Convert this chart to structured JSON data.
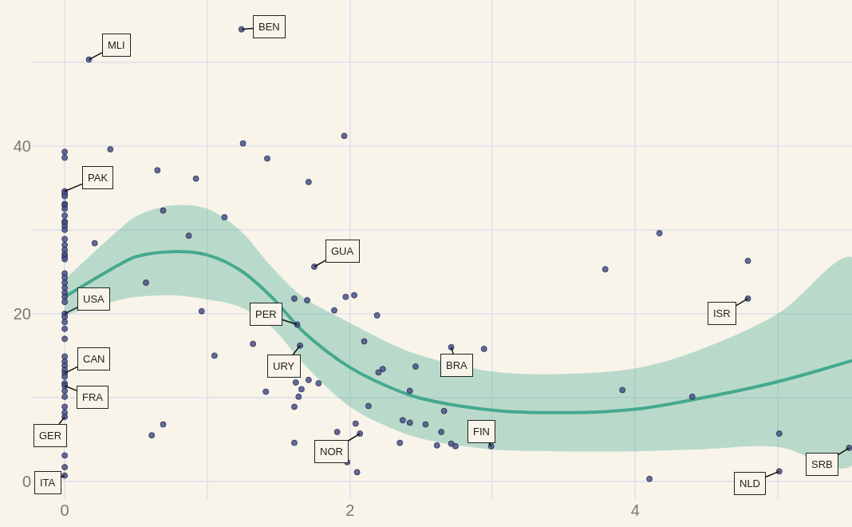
{
  "chart_data": {
    "type": "scatter",
    "xlim": [
      -0.23,
      5.52
    ],
    "ylim": [
      -2.1,
      57.4
    ],
    "xticks": [
      0,
      {
        "value": 1,
        "label": null
      },
      2,
      {
        "value": 3,
        "label": null
      },
      4,
      {
        "value": 5,
        "label": null
      }
    ],
    "yticks": [
      0,
      {
        "value": 10,
        "label": null
      },
      20,
      {
        "value": 30,
        "label": null
      },
      40,
      {
        "value": 50,
        "label": null
      }
    ],
    "grid": true,
    "series": [
      {
        "marker": "circle",
        "color": "#4a5287",
        "x": [
          0,
          0,
          0,
          0,
          0,
          0,
          0,
          0,
          0,
          0,
          0,
          0,
          0,
          0,
          0,
          0,
          0,
          0,
          0,
          0,
          0,
          0,
          0,
          0,
          0,
          0,
          0,
          0,
          0,
          0,
          0,
          0,
          0,
          0,
          0,
          0,
          0,
          0,
          0,
          0,
          0,
          0,
          0,
          0,
          0,
          0,
          0,
          0.17,
          1.24,
          0.32,
          0.65,
          0.92,
          1.25,
          1.42,
          1.71,
          1.96,
          0.69,
          1.12,
          0.87,
          0.21,
          0.57,
          0.96,
          1.05,
          1.32,
          1.41,
          0.61,
          0.69,
          1.75,
          1.61,
          1.7,
          1.97,
          2.03,
          1.89,
          2.19,
          1.63,
          1.65,
          2.1,
          2.71,
          2.94,
          2.2,
          2.23,
          2.46,
          1.62,
          1.71,
          1.78,
          1.66,
          1.64,
          1.61,
          2.13,
          2.42,
          2.66,
          2.37,
          2.42,
          2.53,
          2.64,
          2.04,
          2.07,
          1.91,
          1.61,
          1.98,
          2.05,
          2.35,
          2.61,
          2.71,
          2.74,
          2.99,
          3.79,
          4.17,
          4.79,
          4.79,
          3.91,
          4.4,
          5.01,
          5.01,
          4.1,
          5.5
        ],
        "values": [
          39.3,
          38.6,
          34.6,
          34.3,
          34.0,
          33.1,
          32.9,
          32.5,
          31.7,
          31.0,
          30.8,
          30.4,
          30.0,
          28.9,
          28.2,
          27.6,
          27.1,
          26.8,
          26.5,
          24.8,
          24.3,
          23.7,
          23.1,
          22.5,
          22.0,
          21.4,
          20.0,
          19.6,
          19.0,
          18.2,
          17.0,
          14.9,
          14.3,
          13.8,
          13.3,
          12.9,
          12.5,
          11.7,
          11.4,
          10.8,
          10.1,
          8.9,
          8.2,
          7.7,
          3.1,
          1.7,
          0.7,
          50.3,
          53.9,
          39.6,
          37.1,
          36.1,
          40.3,
          38.5,
          35.7,
          41.2,
          32.3,
          31.5,
          29.3,
          28.4,
          23.7,
          20.3,
          15.0,
          16.4,
          10.7,
          5.5,
          6.8,
          25.6,
          21.8,
          21.6,
          22.0,
          22.2,
          20.4,
          19.8,
          18.7,
          16.2,
          16.7,
          16.0,
          15.8,
          13.0,
          13.4,
          13.7,
          11.8,
          12.1,
          11.7,
          11.0,
          10.1,
          8.9,
          9.0,
          10.8,
          8.4,
          7.3,
          7.0,
          6.8,
          5.9,
          6.9,
          5.7,
          5.9,
          4.6,
          2.3,
          1.1,
          4.6,
          4.3,
          4.5,
          4.2,
          4.2,
          25.3,
          29.6,
          26.3,
          21.8,
          10.9,
          10.1,
          5.7,
          1.2,
          0.3,
          4.0
        ]
      },
      {
        "type": "line",
        "color": "#45a98f",
        "x": [
          0,
          0.4,
          0.5,
          0.75,
          1.0,
          1.23,
          1.45,
          1.67,
          2.0,
          2.34,
          2.5,
          3.0,
          3.46,
          4.0,
          4.42,
          5.0,
          5.52
        ],
        "values": [
          22.0,
          26.0,
          26.8,
          27.4,
          27.0,
          25.2,
          22.0,
          17.9,
          13.6,
          10.8,
          9.9,
          8.5,
          8.2,
          8.6,
          9.8,
          11.9,
          14.4
        ],
        "upper": [
          24.1,
          30.3,
          31.6,
          32.9,
          32.5,
          29.9,
          25.6,
          22.0,
          18.9,
          16.0,
          15.0,
          13.1,
          12.8,
          13.5,
          15.5,
          20.0,
          26.7
        ],
        "lower": [
          19.8,
          21.7,
          22.0,
          22.2,
          21.7,
          20.8,
          18.4,
          14.1,
          8.9,
          6.0,
          5.1,
          3.8,
          3.6,
          3.6,
          3.8,
          4.1,
          1.9
        ]
      }
    ],
    "annotations": [
      {
        "text": "MLI",
        "x": 0.17,
        "y": 50.3
      },
      {
        "text": "BEN",
        "x": 1.24,
        "y": 53.9
      },
      {
        "text": "PAK",
        "x": 0,
        "y": 34.6
      },
      {
        "text": "USA",
        "x": 0,
        "y": 20.0
      },
      {
        "text": "CAN",
        "x": 0,
        "y": 12.9
      },
      {
        "text": "FRA",
        "x": 0,
        "y": 11.4
      },
      {
        "text": "GER",
        "x": 0,
        "y": 7.7
      },
      {
        "text": "ITA",
        "x": 0,
        "y": 0.7
      },
      {
        "text": "PER",
        "x": 1.63,
        "y": 18.7
      },
      {
        "text": "GUA",
        "x": 1.75,
        "y": 25.6
      },
      {
        "text": "URY",
        "x": 1.65,
        "y": 16.2
      },
      {
        "text": "BRA",
        "x": 2.71,
        "y": 16.0
      },
      {
        "text": "NOR",
        "x": 2.07,
        "y": 5.7
      },
      {
        "text": "FIN",
        "x": 2.99,
        "y": 4.2
      },
      {
        "text": "ISR",
        "x": 4.79,
        "y": 21.8
      },
      {
        "text": "NLD",
        "x": 5.01,
        "y": 1.2
      },
      {
        "text": "SRB",
        "x": 5.5,
        "y": 4.0
      }
    ]
  }
}
